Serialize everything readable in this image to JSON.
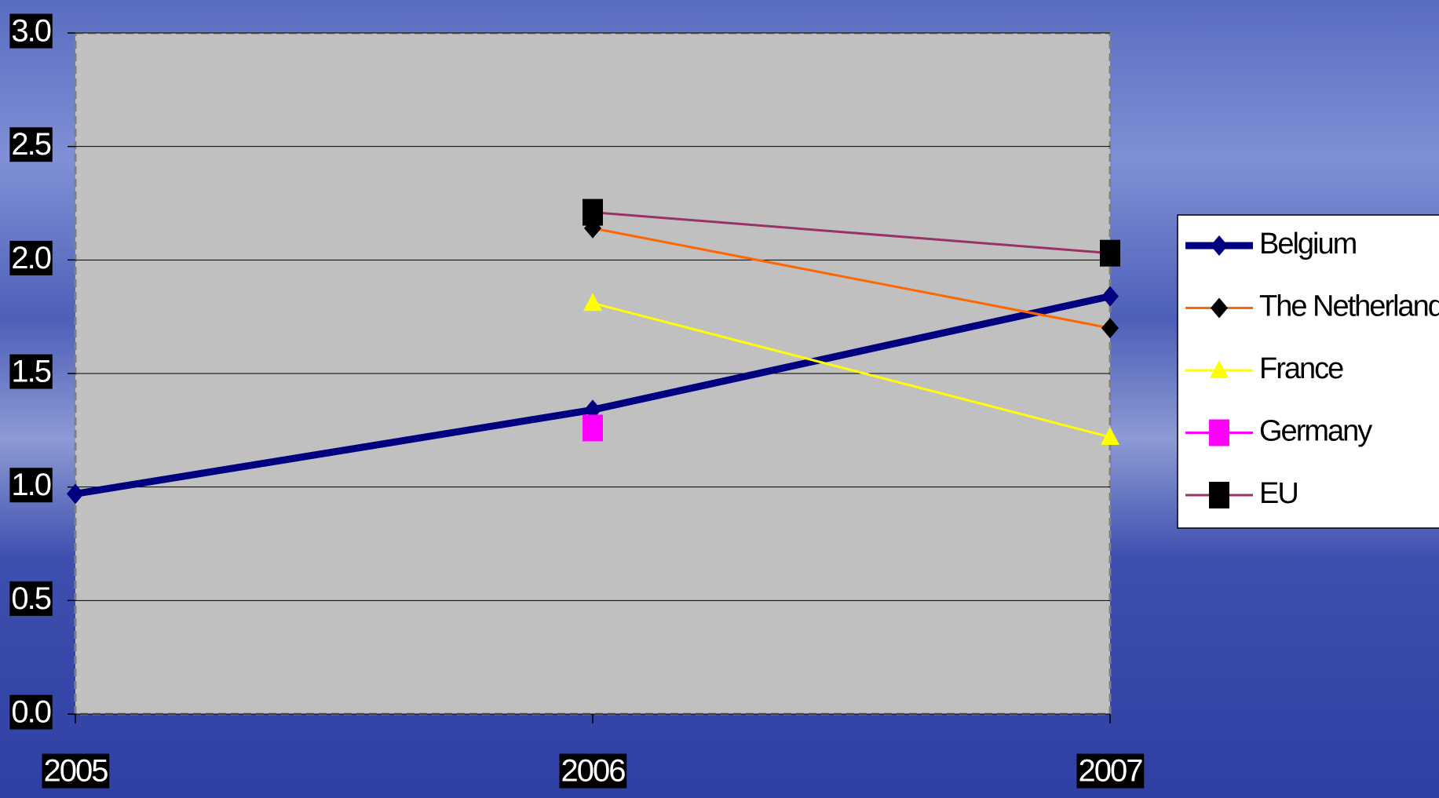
{
  "chart_data": {
    "type": "line",
    "categories": [
      "2005",
      "2006",
      "2007"
    ],
    "series": [
      {
        "name": "Belgium",
        "color": "#000080",
        "marker": "diamond",
        "marker_color": "#000080",
        "values": [
          0.97,
          1.34,
          1.84
        ]
      },
      {
        "name": "The Netherlands",
        "color": "#ff6600",
        "marker": "diamond",
        "marker_color": "#000000",
        "values": [
          null,
          2.14,
          1.7
        ]
      },
      {
        "name": "France",
        "color": "#ffff00",
        "marker": "triangle",
        "marker_color": "#ffff00",
        "values": [
          null,
          1.81,
          1.22
        ]
      },
      {
        "name": "Germany",
        "color": "#ff00ff",
        "marker": "square",
        "marker_color": "#ff00ff",
        "values": [
          null,
          1.26,
          null
        ]
      },
      {
        "name": "EU",
        "color": "#993366",
        "marker": "square",
        "marker_color": "#000000",
        "values": [
          null,
          2.21,
          2.03
        ]
      }
    ],
    "ylim": [
      0,
      3
    ],
    "yticks": [
      {
        "value": 0,
        "label": "0.0"
      },
      {
        "value": 0.5,
        "label": "0.5"
      },
      {
        "value": 1,
        "label": "1.0"
      },
      {
        "value": 1.5,
        "label": "1.5"
      },
      {
        "value": 2,
        "label": "2.0"
      },
      {
        "value": 2.5,
        "label": "2.5"
      },
      {
        "value": 3,
        "label": "3.0"
      }
    ],
    "grid": true,
    "legend": "right",
    "plot_background": "#c0c0c0"
  }
}
